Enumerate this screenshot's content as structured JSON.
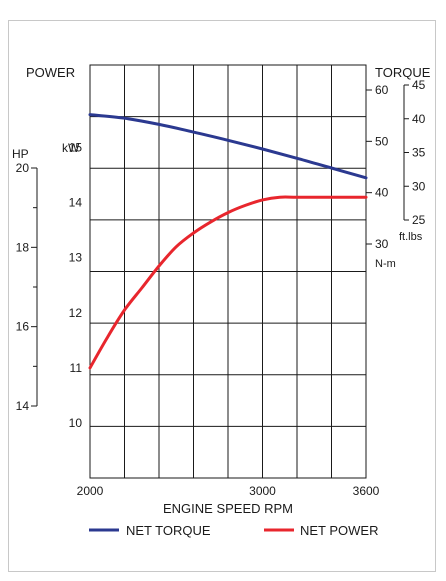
{
  "chart_data": {
    "type": "line",
    "labels": {
      "power": "POWER",
      "torque": "TORQUE",
      "hp": "HP",
      "kw": "kW",
      "nm": "N-m",
      "ftlbs": "ft.lbs",
      "xlabel": "ENGINE SPEED RPM"
    },
    "x_ticks": [
      "2000",
      "3000",
      "3600"
    ],
    "x_range": [
      2000,
      3600
    ],
    "kw_ticks": [
      "15",
      "14",
      "13",
      "12",
      "11",
      "10"
    ],
    "kw_range": [
      9,
      16.5
    ],
    "hp_ticks": [
      "20",
      "18",
      "16",
      "14"
    ],
    "nm_ticks": [
      "60",
      "50",
      "40",
      "30"
    ],
    "ftlbs_ticks": [
      "45",
      "40",
      "35",
      "30",
      "25"
    ],
    "grid": true,
    "legend_position": "bottom",
    "series": [
      {
        "name": "NET TORQUE",
        "color": "#2b3990",
        "x": [
          2000,
          2200,
          2400,
          2600,
          2800,
          3000,
          3200,
          3400,
          3600
        ],
        "y_nm": [
          55.2,
          54.5,
          53.3,
          51.8,
          50.2,
          48.5,
          46.7,
          44.8,
          42.9
        ]
      },
      {
        "name": "NET POWER",
        "color": "#e8262d",
        "x": [
          2000,
          2100,
          2200,
          2300,
          2400,
          2500,
          2600,
          2700,
          2800,
          2900,
          3000,
          3100,
          3200,
          3400,
          3600
        ],
        "y_kw": [
          11.0,
          11.55,
          12.05,
          12.45,
          12.85,
          13.2,
          13.45,
          13.65,
          13.82,
          13.95,
          14.05,
          14.1,
          14.1,
          14.1,
          14.1
        ]
      }
    ]
  }
}
